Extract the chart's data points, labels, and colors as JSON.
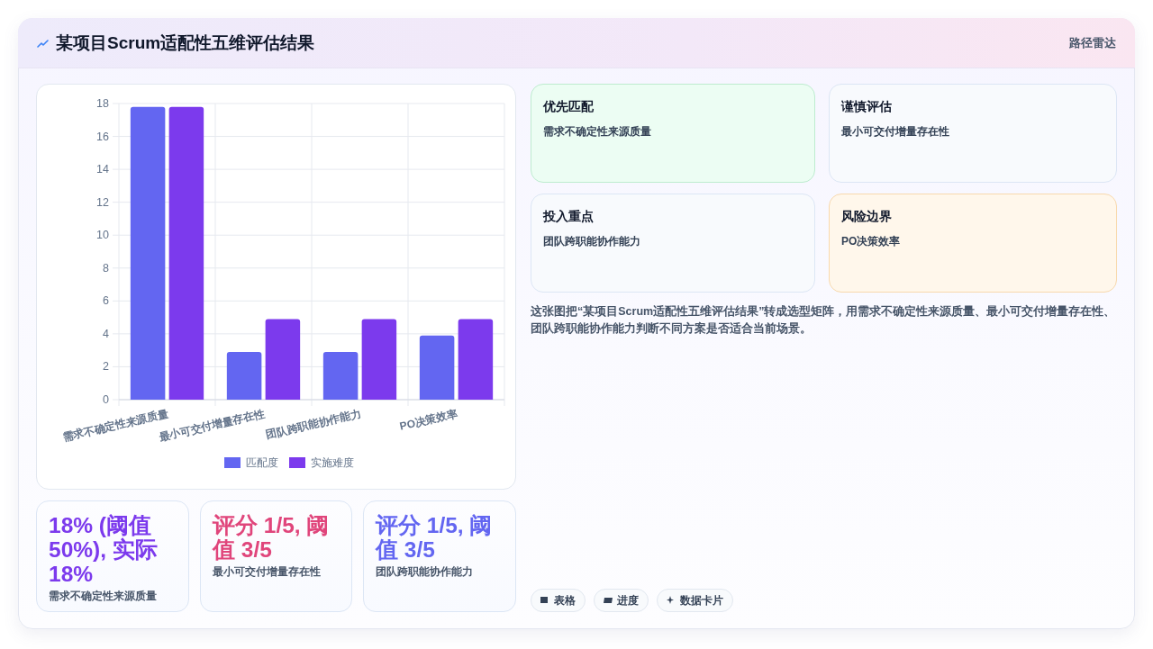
{
  "chart_data": [
    {
      "type": "other",
      "title": "某项目Scrum适配性五维评估结果",
      "annotations": [
        "路径雷达"
      ]
    },
    {
      "type": "bar",
      "categories": [
        "需求不确定性来源质量",
        "最小可交付增量存在性",
        "团队跨职能协作能力",
        "PO决策效率"
      ],
      "series": [
        {
          "name": "匹配度",
          "color": "#6366f1",
          "values": [
            17.8,
            2.9,
            2.9,
            3.9
          ]
        },
        {
          "name": "实施难度",
          "color": "#7c3aed",
          "values": [
            17.8,
            4.9,
            4.9,
            4.9
          ]
        }
      ],
      "ylim": [
        0,
        18
      ],
      "yticks": [
        0,
        2,
        4,
        6,
        8,
        10,
        12,
        14,
        16,
        18
      ],
      "grid": true,
      "legend": "bottom"
    },
    {
      "type": "other",
      "title": "优先匹配",
      "subtitle": "需求不确定性来源质量"
    },
    {
      "type": "other",
      "title": "谨慎评估",
      "subtitle": "最小可交付增量存在性"
    },
    {
      "type": "other",
      "title": "投入重点",
      "subtitle": "团队跨职能协作能力"
    },
    {
      "type": "other",
      "title": "风险边界",
      "subtitle": "PO决策效率"
    },
    {
      "type": "other",
      "annotations": [
        "这张图把“某项目Scrum适配性五维评估结果”转成选型矩阵，用需求不确定性来源质量、最小可交付增量存在性、团队跨职能协作能力判断不同方案是否适合当前场景。",
        "表格",
        "进度",
        "数据卡片"
      ]
    },
    {
      "type": "other",
      "title": "18% (阈值50%), 实际18%",
      "subtitle": "需求不确定性来源质量"
    },
    {
      "type": "other",
      "title": "评分 1/5, 阈值 3/5",
      "subtitle": "最小可交付增量存在性"
    },
    {
      "type": "other",
      "title": "评分 1/5, 阈值 3/5",
      "subtitle": "团队跨职能协作能力"
    }
  ]
}
